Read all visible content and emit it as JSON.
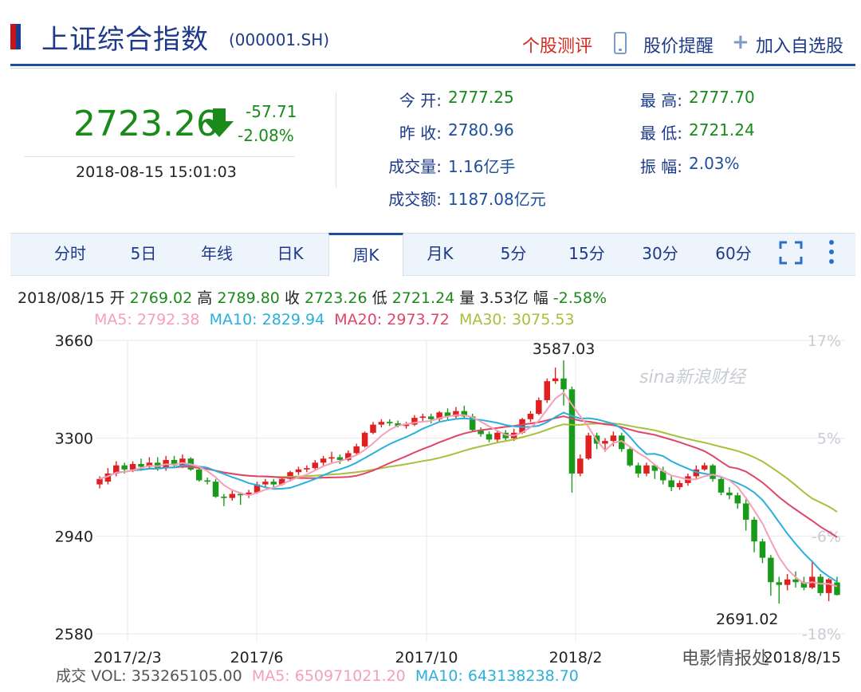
{
  "header": {
    "title": "上证综合指数",
    "code": "(000001.SH)",
    "review_label": "个股测评",
    "alert_label": "股价提醒",
    "add_fav_label": "加入自选股"
  },
  "quote": {
    "price": "2723.26",
    "change": "-57.71",
    "change_pct": "-2.08%",
    "timestamp": "2018-08-15 15:01:03"
  },
  "stats": {
    "open_label": "今  开:",
    "open_value": "2777.25",
    "prev_close_label": "昨  收:",
    "prev_close_value": "2780.96",
    "volume_label": "成交量:",
    "volume_value": "1.16亿手",
    "amount_label": "成交额:",
    "amount_value": "1187.08亿元",
    "high_label": "最  高:",
    "high_value": "2777.70",
    "low_label": "最  低:",
    "low_value": "2721.24",
    "amplitude_label": "振  幅:",
    "amplitude_value": "2.03%"
  },
  "tabs": [
    {
      "label": "分时"
    },
    {
      "label": "5日"
    },
    {
      "label": "年线"
    },
    {
      "label": "日K"
    },
    {
      "label": "周K"
    },
    {
      "label": "月K"
    },
    {
      "label": "5分"
    },
    {
      "label": "15分"
    },
    {
      "label": "30分"
    },
    {
      "label": "60分"
    }
  ],
  "active_tab": "周K",
  "bar_info": {
    "date": "2018/08/15",
    "open_label": "开",
    "open_value": "2769.02",
    "high_label": "高",
    "high_value": "2789.80",
    "close_label": "收",
    "close_value": "2723.26",
    "low_label": "低",
    "low_value": "2721.24",
    "vol_label": "量",
    "vol_value": "3.53亿",
    "amp_label": "幅",
    "amp_value": "-2.58%"
  },
  "ma_info": {
    "ma5": "MA5: 2792.38",
    "ma10": "MA10: 2829.94",
    "ma20": "MA20: 2973.72",
    "ma30": "MA30: 3075.53"
  },
  "colors": {
    "up": "#e02020",
    "down": "#1a9a1a",
    "ma5": "#f5a0b8",
    "ma10": "#2ab0dc",
    "ma20": "#e0456a",
    "ma30": "#a8c03c"
  },
  "watermark": "sina新浪财经",
  "watermark2": "电影情报处",
  "volume_row": {
    "label": "成交",
    "vol": "VOL: 353265105.00",
    "ma5": "MA5: 650971021.20",
    "ma10": "MA10: 643138238.70"
  },
  "chart_data": {
    "type": "candlestick",
    "ylim": [
      2580,
      3660
    ],
    "y_ticks": [
      "3660",
      "3300",
      "2940",
      "2580"
    ],
    "pct_ticks": [
      "17%",
      "5%",
      "-6%",
      "-18%"
    ],
    "x_ticks": [
      "2017/2/3",
      "2017/6",
      "2017/10",
      "2018/2",
      "2018/8/15"
    ],
    "max_label": "3587.03",
    "min_label": "2691.02",
    "candles": [
      [
        3130,
        3150,
        3115,
        3160
      ],
      [
        3140,
        3170,
        3130,
        3190
      ],
      [
        3170,
        3200,
        3160,
        3215
      ],
      [
        3200,
        3185,
        3170,
        3210
      ],
      [
        3185,
        3205,
        3175,
        3215
      ],
      [
        3205,
        3195,
        3180,
        3225
      ],
      [
        3195,
        3210,
        3185,
        3230
      ],
      [
        3210,
        3190,
        3180,
        3230
      ],
      [
        3190,
        3220,
        3180,
        3235
      ],
      [
        3220,
        3200,
        3190,
        3235
      ],
      [
        3200,
        3225,
        3190,
        3240
      ],
      [
        3225,
        3185,
        3180,
        3230
      ],
      [
        3185,
        3145,
        3140,
        3195
      ],
      [
        3145,
        3140,
        3130,
        3155
      ],
      [
        3140,
        3085,
        3080,
        3150
      ],
      [
        3085,
        3080,
        3050,
        3095
      ],
      [
        3080,
        3095,
        3070,
        3110
      ],
      [
        3095,
        3090,
        3055,
        3100
      ],
      [
        3090,
        3100,
        3080,
        3110
      ],
      [
        3100,
        3130,
        3095,
        3140
      ],
      [
        3130,
        3140,
        3120,
        3150
      ],
      [
        3140,
        3130,
        3120,
        3150
      ],
      [
        3130,
        3150,
        3125,
        3160
      ],
      [
        3150,
        3175,
        3140,
        3180
      ],
      [
        3175,
        3185,
        3165,
        3195
      ],
      [
        3185,
        3190,
        3175,
        3200
      ],
      [
        3190,
        3210,
        3180,
        3220
      ],
      [
        3210,
        3225,
        3195,
        3235
      ],
      [
        3225,
        3230,
        3210,
        3250
      ],
      [
        3230,
        3220,
        3205,
        3240
      ],
      [
        3220,
        3245,
        3215,
        3255
      ],
      [
        3245,
        3270,
        3240,
        3280
      ],
      [
        3270,
        3320,
        3265,
        3325
      ],
      [
        3320,
        3350,
        3315,
        3360
      ],
      [
        3350,
        3360,
        3340,
        3370
      ],
      [
        3360,
        3355,
        3345,
        3370
      ],
      [
        3355,
        3345,
        3340,
        3365
      ],
      [
        3345,
        3350,
        3335,
        3360
      ],
      [
        3350,
        3375,
        3345,
        3385
      ],
      [
        3375,
        3380,
        3360,
        3390
      ],
      [
        3380,
        3370,
        3355,
        3390
      ],
      [
        3370,
        3395,
        3360,
        3400
      ],
      [
        3395,
        3380,
        3365,
        3410
      ],
      [
        3380,
        3400,
        3370,
        3415
      ],
      [
        3400,
        3380,
        3370,
        3420
      ],
      [
        3380,
        3330,
        3325,
        3390
      ],
      [
        3330,
        3315,
        3305,
        3340
      ],
      [
        3315,
        3295,
        3285,
        3325
      ],
      [
        3295,
        3320,
        3285,
        3330
      ],
      [
        3320,
        3300,
        3290,
        3330
      ],
      [
        3300,
        3320,
        3290,
        3335
      ],
      [
        3320,
        3370,
        3315,
        3375
      ],
      [
        3370,
        3390,
        3360,
        3400
      ],
      [
        3390,
        3440,
        3385,
        3450
      ],
      [
        3440,
        3510,
        3430,
        3520
      ],
      [
        3510,
        3520,
        3500,
        3560
      ],
      [
        3520,
        3480,
        3420,
        3587
      ],
      [
        3480,
        3170,
        3100,
        3490
      ],
      [
        3170,
        3225,
        3160,
        3240
      ],
      [
        3225,
        3310,
        3220,
        3320
      ],
      [
        3310,
        3280,
        3260,
        3320
      ],
      [
        3280,
        3290,
        3250,
        3300
      ],
      [
        3290,
        3310,
        3270,
        3325
      ],
      [
        3310,
        3260,
        3250,
        3320
      ],
      [
        3260,
        3200,
        3195,
        3270
      ],
      [
        3200,
        3170,
        3155,
        3210
      ],
      [
        3170,
        3200,
        3160,
        3210
      ],
      [
        3200,
        3180,
        3150,
        3205
      ],
      [
        3180,
        3145,
        3130,
        3195
      ],
      [
        3145,
        3120,
        3105,
        3160
      ],
      [
        3120,
        3135,
        3110,
        3145
      ],
      [
        3135,
        3160,
        3125,
        3170
      ],
      [
        3160,
        3185,
        3150,
        3200
      ],
      [
        3185,
        3200,
        3180,
        3210
      ],
      [
        3200,
        3150,
        3140,
        3205
      ],
      [
        3150,
        3100,
        3090,
        3160
      ],
      [
        3100,
        3090,
        3075,
        3120
      ],
      [
        3090,
        3060,
        3040,
        3100
      ],
      [
        3060,
        3000,
        2960,
        3075
      ],
      [
        3000,
        2920,
        2880,
        3010
      ],
      [
        2920,
        2860,
        2840,
        2930
      ],
      [
        2860,
        2770,
        2720,
        2870
      ],
      [
        2770,
        2760,
        2691,
        2790
      ],
      [
        2760,
        2780,
        2740,
        2800
      ],
      [
        2780,
        2770,
        2750,
        2810
      ],
      [
        2770,
        2750,
        2740,
        2790
      ],
      [
        2750,
        2790,
        2745,
        2850
      ],
      [
        2790,
        2730,
        2720,
        2800
      ],
      [
        2730,
        2780,
        2700,
        2785
      ],
      [
        2769,
        2723,
        2721,
        2790
      ]
    ]
  }
}
